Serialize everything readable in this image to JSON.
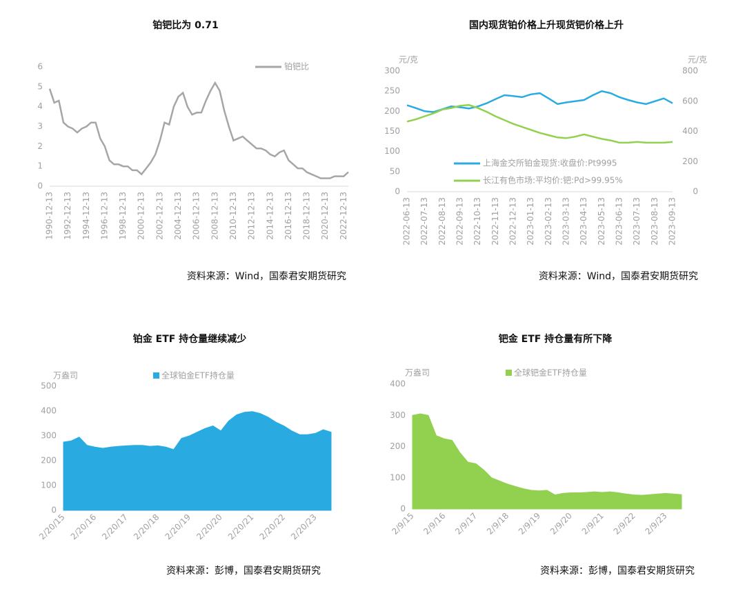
{
  "chart_data": [
    {
      "type": "line",
      "title": "铂钯比为 0.71",
      "source": "资料来源：Wind，国泰君安期货研究",
      "categories": [
        "1990-12-13",
        null,
        null,
        null,
        "1992-12-13",
        null,
        null,
        null,
        "1994-12-13",
        null,
        null,
        null,
        "1996-12-13",
        null,
        null,
        null,
        "1998-12-13",
        null,
        null,
        null,
        "2000-12-13",
        null,
        null,
        null,
        "2002-12-13",
        null,
        null,
        null,
        "2004-12-13",
        null,
        null,
        null,
        "2006-12-13",
        null,
        null,
        null,
        "2008-12-13",
        null,
        null,
        null,
        "2010-12-13",
        null,
        null,
        null,
        "2012-12-13",
        null,
        null,
        null,
        "2014-12-13",
        null,
        null,
        null,
        "2016-12-13",
        null,
        null,
        null,
        "2018-12-13",
        null,
        null,
        null,
        "2020-12-13",
        null,
        null,
        null,
        "2022-12-13",
        null
      ],
      "series": [
        {
          "name": "铂钯比",
          "color": "#a6a6a6",
          "values": [
            4.9,
            4.2,
            4.3,
            3.2,
            3.0,
            2.9,
            2.7,
            2.9,
            3.0,
            3.2,
            3.2,
            2.4,
            2.0,
            1.3,
            1.1,
            1.1,
            1.0,
            1.0,
            0.8,
            0.8,
            0.6,
            0.9,
            1.2,
            1.6,
            2.3,
            3.2,
            3.1,
            4.0,
            4.5,
            4.7,
            4.0,
            3.6,
            3.7,
            3.7,
            4.3,
            4.8,
            5.2,
            4.8,
            3.8,
            3.0,
            2.3,
            2.4,
            2.5,
            2.3,
            2.1,
            1.9,
            1.9,
            1.8,
            1.6,
            1.5,
            1.7,
            1.8,
            1.3,
            1.1,
            0.9,
            0.9,
            0.7,
            0.6,
            0.5,
            0.4,
            0.4,
            0.4,
            0.5,
            0.5,
            0.5,
            0.71
          ]
        }
      ],
      "ylim": [
        0,
        6
      ],
      "yticks": [
        0,
        1,
        2,
        3,
        4,
        5,
        6
      ]
    },
    {
      "type": "line",
      "title": "国内现货铂价格上升现货钯价格上升",
      "source": "资料来源：Wind，国泰君安期货研究",
      "ylabel": "元/克",
      "y2label": "元/克",
      "categories": [
        "2022-06-13",
        null,
        "2022-07-13",
        null,
        "2022-08-13",
        null,
        "2022-09-13",
        null,
        "2022-10-13",
        null,
        "2022-11-13",
        null,
        "2022-12-13",
        null,
        "2023-01-13",
        null,
        "2023-02-13",
        null,
        "2023-03-13",
        null,
        "2023-04-13",
        null,
        "2023-05-13",
        null,
        "2023-06-13",
        null,
        "2023-07-13",
        null,
        "2023-08-13",
        null,
        "2023-09-13"
      ],
      "series": [
        {
          "name": "上海金交所铂金现货:收盘价:Pt9995",
          "color": "#29abe2",
          "values": [
            215,
            208,
            200,
            198,
            205,
            212,
            210,
            207,
            212,
            220,
            230,
            240,
            238,
            235,
            242,
            245,
            232,
            218,
            222,
            225,
            228,
            240,
            250,
            245,
            235,
            228,
            222,
            218,
            225,
            232,
            220
          ]
        },
        {
          "name": "长江有色市场:平均价:钯:Pd>99.95%",
          "color": "#92d050",
          "axis": "y2",
          "values": [
            465,
            480,
            500,
            520,
            545,
            555,
            570,
            575,
            555,
            530,
            500,
            475,
            450,
            430,
            410,
            390,
            375,
            360,
            355,
            365,
            380,
            365,
            350,
            340,
            325,
            325,
            330,
            325,
            325,
            325,
            330
          ]
        }
      ],
      "ylim": [
        0,
        300
      ],
      "yticks": [
        0,
        50,
        100,
        150,
        200,
        250,
        300
      ],
      "y2lim": [
        0,
        800
      ],
      "y2ticks": [
        0,
        200,
        400,
        600,
        800
      ]
    },
    {
      "type": "area",
      "title": "铂金 ETF 持仓量继续减少",
      "source": "资料来源：彭博，国泰君安期货研究",
      "ylabel": "万盎司",
      "categories": [
        "2/20/15",
        null,
        null,
        null,
        "2/20/16",
        null,
        null,
        null,
        "2/20/17",
        null,
        null,
        null,
        "2/20/18",
        null,
        null,
        null,
        "2/20/19",
        null,
        null,
        null,
        "2/20/20",
        null,
        null,
        null,
        "2/20/21",
        null,
        null,
        null,
        "2/20/22",
        null,
        null,
        null,
        "2/20/23",
        null,
        null
      ],
      "series": [
        {
          "name": "全球铂金ETF持仓量",
          "color": "#29abe2",
          "values": [
            275,
            280,
            295,
            262,
            255,
            250,
            255,
            258,
            260,
            262,
            262,
            258,
            260,
            255,
            245,
            290,
            300,
            315,
            330,
            340,
            320,
            360,
            385,
            395,
            398,
            390,
            375,
            355,
            340,
            320,
            305,
            305,
            310,
            325,
            315
          ]
        }
      ],
      "ylim": [
        0,
        500
      ],
      "yticks": [
        0,
        100,
        200,
        300,
        400,
        500
      ]
    },
    {
      "type": "area",
      "title": "钯金 ETF 持仓量有所下降",
      "source": "资料来源：彭博，国泰君安期货研究",
      "ylabel": "万盎司",
      "categories": [
        "2/9/15",
        null,
        null,
        null,
        "2/9/16",
        null,
        null,
        null,
        "2/9/17",
        null,
        null,
        null,
        "2/9/18",
        null,
        null,
        null,
        "2/9/19",
        null,
        null,
        null,
        "2/9/20",
        null,
        null,
        null,
        "2/9/21",
        null,
        null,
        null,
        "2/9/22",
        null,
        null,
        null,
        "2/9/23",
        null,
        null
      ],
      "series": [
        {
          "name": "全球钯金ETF持仓量",
          "color": "#92d050",
          "values": [
            300,
            305,
            300,
            235,
            225,
            220,
            180,
            150,
            145,
            125,
            100,
            90,
            80,
            72,
            65,
            60,
            58,
            60,
            45,
            50,
            52,
            52,
            53,
            55,
            53,
            55,
            52,
            48,
            45,
            44,
            46,
            48,
            50,
            48,
            46
          ]
        }
      ],
      "ylim": [
        0,
        400
      ],
      "yticks": [
        0,
        100,
        200,
        300,
        400
      ]
    }
  ]
}
